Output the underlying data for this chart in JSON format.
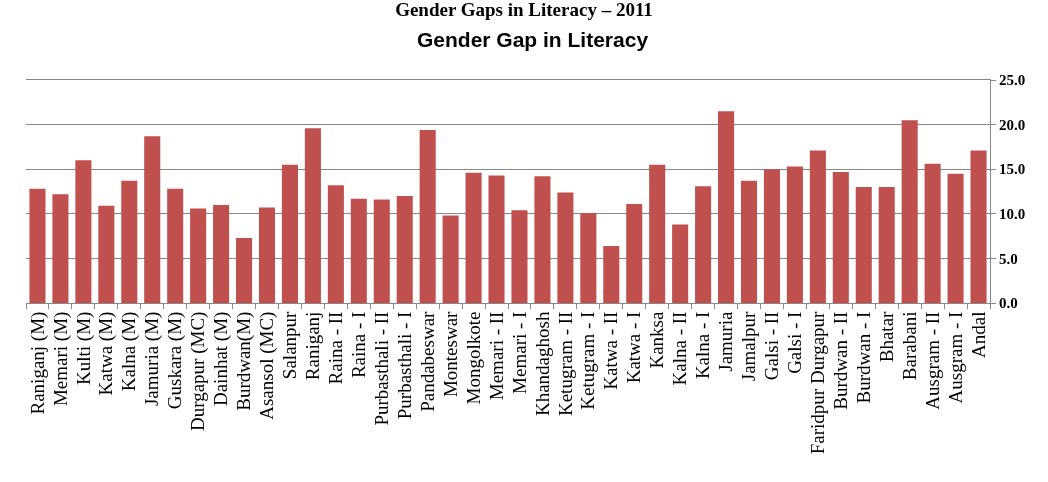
{
  "chart_data": {
    "type": "bar",
    "title": "Gender Gaps in Literacy – 2011",
    "subtitle": "Gender Gap in Literacy",
    "categories": [
      "Raniganj (M)",
      "Memari (M)",
      "Kulti (M)",
      "Katwa (M)",
      "Kalna (M)",
      "Jamuria (M)",
      "Guskara (M)",
      "Durgapur (MC)",
      "Dainhat (M)",
      "Burdwan(M)",
      "Asansol (MC)",
      "Salanpur",
      "Raniganj",
      "Raina - II",
      "Raina - I",
      "Purbasthali - II",
      "Purbasthali - I",
      "Pandabeswar",
      "Monteswar",
      "Mongolkote",
      "Memari - II",
      "Memari - I",
      "Khandaghosh",
      "Ketugram - II",
      "Ketugram - I",
      "Katwa - II",
      "Katwa - I",
      "Kanksa",
      "Kalna - II",
      "Kalna - I",
      "Jamuria",
      "Jamalpur",
      "Galsi - II",
      "Galsi - I",
      "Faridpur Durgapur",
      "Burdwan - II",
      "Burdwan - I",
      "Bhatar",
      "Barabani",
      "Ausgram - II",
      "Ausgram - I",
      "Andal"
    ],
    "values": [
      12.8,
      12.2,
      16.0,
      10.9,
      13.7,
      18.7,
      12.8,
      10.6,
      11.0,
      7.3,
      10.7,
      15.5,
      19.6,
      13.2,
      11.7,
      11.6,
      12.0,
      19.4,
      9.8,
      14.6,
      14.3,
      10.4,
      14.2,
      12.4,
      10.1,
      6.4,
      11.1,
      15.5,
      8.8,
      13.1,
      21.5,
      13.7,
      15.0,
      15.3,
      17.1,
      14.7,
      13.0,
      13.0,
      20.5,
      15.6,
      14.5,
      17.1
    ],
    "color": "#c0504d",
    "ylim": [
      0,
      25
    ],
    "yticks": [
      {
        "value": 0,
        "label": "0.0"
      },
      {
        "value": 5,
        "label": "5.0"
      },
      {
        "value": 10,
        "label": "10.0"
      },
      {
        "value": 15,
        "label": "15.0"
      },
      {
        "value": 20,
        "label": "20.0"
      },
      {
        "value": 25,
        "label": "25.0"
      }
    ],
    "grid": "y"
  }
}
